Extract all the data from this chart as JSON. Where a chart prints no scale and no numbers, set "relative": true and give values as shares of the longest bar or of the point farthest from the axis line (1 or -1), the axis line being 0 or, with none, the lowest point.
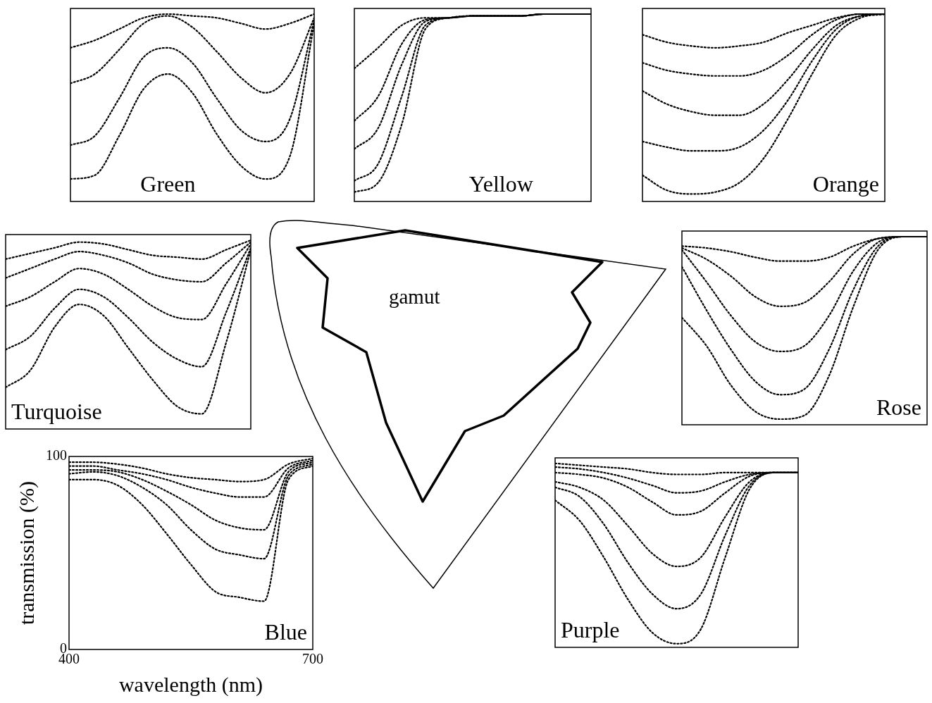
{
  "chart_data": [
    {
      "type": "line",
      "title": "Green",
      "relative": true,
      "categories": [
        null,
        null,
        null,
        null,
        null,
        null,
        null,
        null,
        null,
        null,
        null
      ],
      "tick_labels": false,
      "line_style": "dotted",
      "series": [
        {
          "color": "#000000",
          "values": [
            0.82,
            0.86,
            0.92,
            0.98,
            1,
            0.99,
            0.98,
            0.95,
            0.92,
            0.95,
            1
          ]
        },
        {
          "color": "#000000",
          "values": [
            0.63,
            0.68,
            0.81,
            0.95,
            0.99,
            0.93,
            0.8,
            0.66,
            0.58,
            0.68,
            0.98
          ]
        },
        {
          "color": "#000000",
          "values": [
            0.3,
            0.35,
            0.55,
            0.77,
            0.82,
            0.74,
            0.55,
            0.38,
            0.32,
            0.44,
            0.97
          ]
        },
        {
          "color": "#000000",
          "values": [
            0.12,
            0.14,
            0.35,
            0.6,
            0.68,
            0.58,
            0.36,
            0.19,
            0.12,
            0.24,
            0.95
          ]
        }
      ]
    },
    {
      "type": "line",
      "title": "Yellow",
      "relative": true,
      "categories": [
        null,
        null,
        null,
        null,
        null,
        null,
        null,
        null,
        null,
        null,
        null
      ],
      "tick_labels": false,
      "line_style": "dotted",
      "series": [
        {
          "color": "#000000",
          "values": [
            0.71,
            0.82,
            0.94,
            0.98,
            0.98,
            0.99,
            0.99,
            0.99,
            1,
            1,
            1
          ]
        },
        {
          "color": "#000000",
          "values": [
            0.43,
            0.56,
            0.84,
            0.97,
            0.98,
            0.99,
            0.99,
            0.99,
            1,
            1,
            1
          ]
        },
        {
          "color": "#000000",
          "values": [
            0.28,
            0.39,
            0.73,
            0.96,
            0.98,
            0.99,
            0.99,
            0.99,
            1,
            1,
            1
          ]
        },
        {
          "color": "#000000",
          "values": [
            0.11,
            0.2,
            0.56,
            0.94,
            0.98,
            0.99,
            0.99,
            0.99,
            1,
            1,
            1
          ]
        },
        {
          "color": "#000000",
          "values": [
            0.05,
            0.1,
            0.41,
            0.92,
            0.98,
            0.99,
            0.99,
            0.99,
            1,
            1,
            1
          ]
        }
      ]
    },
    {
      "type": "line",
      "title": "Orange",
      "relative": true,
      "categories": [
        null,
        null,
        null,
        null,
        null,
        null,
        null,
        null,
        null,
        null,
        null
      ],
      "tick_labels": false,
      "line_style": "dotted",
      "series": [
        {
          "color": "#000000",
          "values": [
            0.89,
            0.85,
            0.83,
            0.82,
            0.83,
            0.85,
            0.9,
            0.94,
            0.98,
            1,
            1
          ]
        },
        {
          "color": "#000000",
          "values": [
            0.74,
            0.7,
            0.68,
            0.67,
            0.67,
            0.7,
            0.78,
            0.89,
            0.97,
            1,
            1
          ]
        },
        {
          "color": "#000000",
          "values": [
            0.59,
            0.52,
            0.48,
            0.46,
            0.46,
            0.52,
            0.65,
            0.81,
            0.94,
            0.99,
            1
          ]
        },
        {
          "color": "#000000",
          "values": [
            0.32,
            0.29,
            0.27,
            0.27,
            0.29,
            0.38,
            0.54,
            0.75,
            0.92,
            0.99,
            1
          ]
        },
        {
          "color": "#000000",
          "values": [
            0.14,
            0.06,
            0.04,
            0.05,
            0.1,
            0.23,
            0.44,
            0.68,
            0.89,
            0.98,
            1
          ]
        }
      ]
    },
    {
      "type": "line",
      "title": "Turquoise",
      "relative": true,
      "categories": [
        null,
        null,
        null,
        null,
        null,
        null,
        null,
        null,
        null,
        null,
        null
      ],
      "tick_labels": false,
      "line_style": "dotted",
      "series": [
        {
          "color": "#000000",
          "values": [
            0.9,
            0.93,
            0.96,
            0.99,
            0.98,
            0.95,
            0.92,
            0.91,
            0.9,
            0.95,
            1
          ]
        },
        {
          "color": "#000000",
          "values": [
            0.8,
            0.85,
            0.9,
            0.94,
            0.92,
            0.88,
            0.82,
            0.79,
            0.78,
            0.88,
            0.99
          ]
        },
        {
          "color": "#000000",
          "values": [
            0.65,
            0.7,
            0.78,
            0.85,
            0.82,
            0.74,
            0.65,
            0.59,
            0.58,
            0.77,
            0.98
          ]
        },
        {
          "color": "#000000",
          "values": [
            0.42,
            0.49,
            0.64,
            0.74,
            0.7,
            0.59,
            0.46,
            0.37,
            0.33,
            0.62,
            0.96
          ]
        },
        {
          "color": "#000000",
          "values": [
            0.22,
            0.31,
            0.54,
            0.66,
            0.6,
            0.43,
            0.26,
            0.12,
            0.08,
            0.46,
            0.95
          ]
        }
      ]
    },
    {
      "type": "line",
      "title": "Rose",
      "relative": true,
      "categories": [
        null,
        null,
        null,
        null,
        null,
        null,
        null,
        null,
        null,
        null,
        null
      ],
      "tick_labels": false,
      "line_style": "dotted",
      "series": [
        {
          "color": "#000000",
          "values": [
            0.95,
            0.94,
            0.92,
            0.89,
            0.87,
            0.87,
            0.89,
            0.95,
            0.99,
            1,
            1
          ]
        },
        {
          "color": "#000000",
          "values": [
            0.94,
            0.88,
            0.79,
            0.68,
            0.63,
            0.65,
            0.76,
            0.91,
            0.99,
            1,
            1
          ]
        },
        {
          "color": "#000000",
          "values": [
            0.93,
            0.76,
            0.58,
            0.44,
            0.39,
            0.42,
            0.58,
            0.82,
            0.97,
            1,
            1
          ]
        },
        {
          "color": "#000000",
          "values": [
            0.84,
            0.61,
            0.4,
            0.23,
            0.16,
            0.19,
            0.4,
            0.72,
            0.95,
            1,
            1
          ]
        },
        {
          "color": "#000000",
          "values": [
            0.57,
            0.42,
            0.21,
            0.07,
            0.03,
            0.05,
            0.26,
            0.63,
            0.93,
            1,
            1
          ]
        }
      ]
    },
    {
      "type": "line",
      "title": "Blue",
      "xlabel": "wavelength (nm)",
      "ylabel": "transmission (%)",
      "x": [
        400,
        430,
        460,
        490,
        520,
        550,
        580,
        610,
        640,
        670,
        700
      ],
      "xlim": [
        400,
        700
      ],
      "ylim": [
        0,
        100
      ],
      "xticks": [
        400,
        700
      ],
      "yticks": [
        0,
        100
      ],
      "line_style": "dotted",
      "series": [
        {
          "color": "#000000",
          "values": [
            97,
            97,
            96,
            94,
            91,
            89,
            88,
            87,
            88,
            96,
            99
          ]
        },
        {
          "color": "#000000",
          "values": [
            95,
            95,
            93,
            91,
            88,
            84,
            81,
            79,
            79,
            94,
            98
          ]
        },
        {
          "color": "#000000",
          "values": [
            93,
            93,
            92,
            88,
            82,
            75,
            67,
            63,
            62,
            92,
            97
          ]
        },
        {
          "color": "#000000",
          "values": [
            91,
            92,
            90,
            84,
            75,
            62,
            52,
            49,
            47,
            90,
            96
          ]
        },
        {
          "color": "#000000",
          "values": [
            88,
            88,
            85,
            75,
            60,
            44,
            30,
            27,
            25,
            88,
            95
          ]
        }
      ]
    },
    {
      "type": "line",
      "title": "Purple",
      "relative": true,
      "categories": [
        null,
        null,
        null,
        null,
        null,
        null,
        null,
        null,
        null,
        null,
        null
      ],
      "tick_labels": false,
      "line_style": "dotted",
      "series": [
        {
          "color": "#000000",
          "values": [
            1,
            0.99,
            0.98,
            0.97,
            0.95,
            0.94,
            0.94,
            0.95,
            0.95,
            0.95,
            0.95
          ]
        },
        {
          "color": "#000000",
          "values": [
            0.98,
            0.97,
            0.95,
            0.92,
            0.88,
            0.84,
            0.85,
            0.9,
            0.94,
            0.95,
            0.95
          ]
        },
        {
          "color": "#000000",
          "values": [
            0.95,
            0.94,
            0.92,
            0.87,
            0.79,
            0.72,
            0.74,
            0.84,
            0.93,
            0.95,
            0.95
          ]
        },
        {
          "color": "#000000",
          "values": [
            0.9,
            0.87,
            0.8,
            0.66,
            0.51,
            0.44,
            0.49,
            0.71,
            0.9,
            0.95,
            0.95
          ]
        },
        {
          "color": "#000000",
          "values": [
            0.87,
            0.82,
            0.67,
            0.46,
            0.29,
            0.21,
            0.29,
            0.61,
            0.88,
            0.95,
            0.95
          ]
        },
        {
          "color": "#000000",
          "values": [
            0.8,
            0.69,
            0.49,
            0.26,
            0.08,
            0.02,
            0.1,
            0.49,
            0.86,
            0.95,
            0.95
          ]
        }
      ]
    },
    {
      "type": "other",
      "annotations": [
        "gamut"
      ]
    }
  ]
}
